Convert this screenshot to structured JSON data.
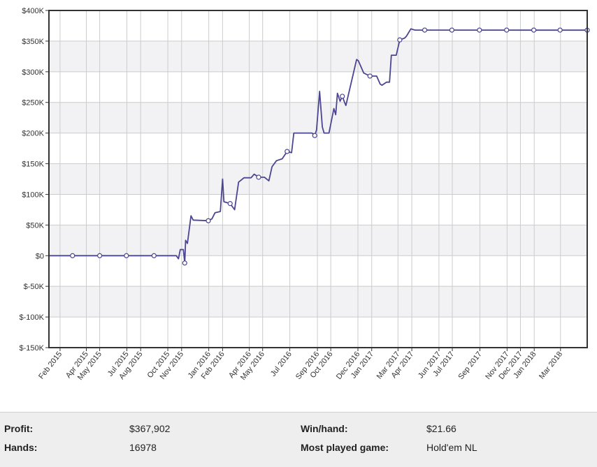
{
  "chart_data": {
    "type": "line",
    "title": "",
    "xlabel": "",
    "ylabel": "",
    "grid": true,
    "xlim": [
      "2015-01-07",
      "2018-04-30"
    ],
    "ylim": [
      -150000,
      400000
    ],
    "y_ticks": [
      400000,
      350000,
      300000,
      250000,
      200000,
      150000,
      100000,
      50000,
      0,
      -50000,
      -100000,
      -150000
    ],
    "y_tick_labels": [
      "$400K",
      "$350K",
      "$300K",
      "$250K",
      "$200K",
      "$150K",
      "$100K",
      "$50K",
      "$0",
      "$-50K",
      "$-100K",
      "$-150K"
    ],
    "x_tick_labels": [
      "Feb 2015",
      "Apr 2015",
      "May 2015",
      "Jul 2015",
      "Aug 2015",
      "Oct 2015",
      "Nov 2015",
      "Jan 2016",
      "Feb 2016",
      "Apr 2016",
      "May 2016",
      "Jul 2016",
      "Sep 2016",
      "Oct 2016",
      "Dec 2016",
      "Jan 2017",
      "Mar 2017",
      "Apr 2017",
      "Jun 2017",
      "Jul 2017",
      "Sep 2017",
      "Nov 2017",
      "Dec 2017",
      "Jan 2018",
      "Mar 2018"
    ],
    "x_tick_dates": [
      "2015-02-01",
      "2015-04-01",
      "2015-05-01",
      "2015-07-01",
      "2015-08-01",
      "2015-10-01",
      "2015-11-01",
      "2016-01-01",
      "2016-02-01",
      "2016-04-01",
      "2016-05-01",
      "2016-07-01",
      "2016-09-01",
      "2016-10-01",
      "2016-12-01",
      "2017-01-01",
      "2017-03-01",
      "2017-04-01",
      "2017-06-01",
      "2017-07-01",
      "2017-09-01",
      "2017-11-01",
      "2017-12-01",
      "2018-01-01",
      "2018-03-01"
    ],
    "series": [
      {
        "name": "",
        "color": "#4b4592",
        "points": [
          [
            "2015-01-07",
            0
          ],
          [
            "2015-10-20",
            0
          ],
          [
            "2015-10-25",
            -5000
          ],
          [
            "2015-10-29",
            10000
          ],
          [
            "2015-11-05",
            10000
          ],
          [
            "2015-11-08",
            -12000
          ],
          [
            "2015-11-10",
            25000
          ],
          [
            "2015-11-14",
            20000
          ],
          [
            "2015-11-22",
            65000
          ],
          [
            "2015-11-27",
            58000
          ],
          [
            "2015-12-31",
            57000
          ],
          [
            "2016-01-08",
            60000
          ],
          [
            "2016-01-15",
            70000
          ],
          [
            "2016-01-27",
            72000
          ],
          [
            "2016-02-01",
            125000
          ],
          [
            "2016-02-04",
            88000
          ],
          [
            "2016-02-18",
            85000
          ],
          [
            "2016-02-28",
            75000
          ],
          [
            "2016-03-08",
            120000
          ],
          [
            "2016-03-20",
            127000
          ],
          [
            "2016-04-05",
            127000
          ],
          [
            "2016-04-12",
            133000
          ],
          [
            "2016-04-22",
            128000
          ],
          [
            "2016-05-05",
            128000
          ],
          [
            "2016-05-15",
            122000
          ],
          [
            "2016-05-22",
            145000
          ],
          [
            "2016-06-01",
            155000
          ],
          [
            "2016-06-14",
            158000
          ],
          [
            "2016-06-25",
            170000
          ],
          [
            "2016-07-05",
            168000
          ],
          [
            "2016-07-10",
            200000
          ],
          [
            "2016-08-20",
            200000
          ],
          [
            "2016-08-26",
            196000
          ],
          [
            "2016-08-30",
            205000
          ],
          [
            "2016-09-06",
            268000
          ],
          [
            "2016-09-12",
            210000
          ],
          [
            "2016-09-16",
            200000
          ],
          [
            "2016-09-27",
            200000
          ],
          [
            "2016-10-08",
            240000
          ],
          [
            "2016-10-12",
            230000
          ],
          [
            "2016-10-16",
            265000
          ],
          [
            "2016-10-22",
            252000
          ],
          [
            "2016-10-27",
            260000
          ],
          [
            "2016-11-01",
            250000
          ],
          [
            "2016-11-04",
            245000
          ],
          [
            "2016-11-28",
            320000
          ],
          [
            "2016-12-02",
            318000
          ],
          [
            "2016-12-14",
            298000
          ],
          [
            "2016-12-28",
            293000
          ],
          [
            "2017-01-12",
            293000
          ],
          [
            "2017-01-20",
            280000
          ],
          [
            "2017-01-24",
            278000
          ],
          [
            "2017-02-03",
            283000
          ],
          [
            "2017-02-10",
            283000
          ],
          [
            "2017-02-14",
            327000
          ],
          [
            "2017-02-25",
            327000
          ],
          [
            "2017-03-05",
            352000
          ],
          [
            "2017-03-16",
            355000
          ],
          [
            "2017-03-20",
            358000
          ],
          [
            "2017-03-30",
            370000
          ],
          [
            "2017-04-08",
            368000
          ],
          [
            "2018-04-30",
            367902
          ]
        ],
        "markers": [
          [
            "2015-03-01",
            0
          ],
          [
            "2015-05-01",
            0
          ],
          [
            "2015-06-30",
            0
          ],
          [
            "2015-08-31",
            0
          ],
          [
            "2015-11-08",
            -12000
          ],
          [
            "2015-12-31",
            57000
          ],
          [
            "2016-02-18",
            85000
          ],
          [
            "2016-04-22",
            128000
          ],
          [
            "2016-06-25",
            170000
          ],
          [
            "2016-08-26",
            196000
          ],
          [
            "2016-10-27",
            260000
          ],
          [
            "2016-12-28",
            293000
          ],
          [
            "2017-03-05",
            352000
          ],
          [
            "2017-04-30",
            368000
          ],
          [
            "2017-06-30",
            368000
          ],
          [
            "2017-08-31",
            368000
          ],
          [
            "2017-10-31",
            368000
          ],
          [
            "2017-12-31",
            368000
          ],
          [
            "2018-02-28",
            368000
          ],
          [
            "2018-04-30",
            367902
          ]
        ]
      }
    ]
  },
  "stats": {
    "profit": {
      "label": "Profit:",
      "value": "$367,902"
    },
    "win_per_hand": {
      "label": "Win/hand:",
      "value": "$21.66"
    },
    "hands": {
      "label": "Hands:",
      "value": "16978"
    },
    "most_played": {
      "label": "Most played game:",
      "value": "Hold'em NL"
    }
  },
  "colors": {
    "line": "#4b4592",
    "frame": "#333333",
    "grid": "#cccccc",
    "band": "#f2f2f4"
  }
}
